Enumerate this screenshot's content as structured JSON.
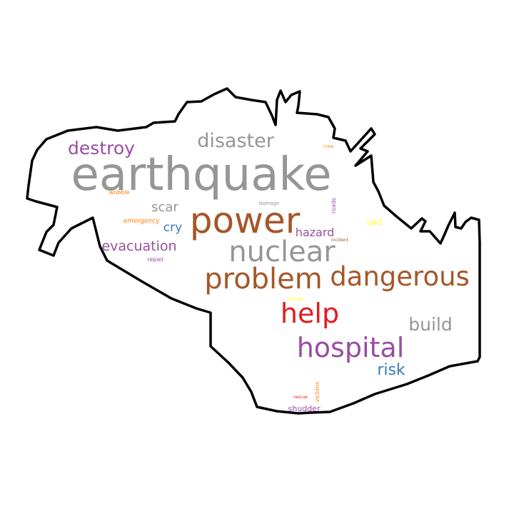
{
  "outline": {
    "stroke_color": "#000000",
    "fill_color": "#ffffff"
  },
  "words": [
    {
      "text": "earthquake",
      "color": "#969696"
    },
    {
      "text": "power",
      "color": "#a65628"
    },
    {
      "text": "problem",
      "color": "#a65628"
    },
    {
      "text": "dangerous",
      "color": "#a65628"
    },
    {
      "text": "nuclear",
      "color": "#969696"
    },
    {
      "text": "hospital",
      "color": "#984ea3"
    },
    {
      "text": "help",
      "color": "#e41a1c"
    },
    {
      "text": "disaster",
      "color": "#969696"
    },
    {
      "text": "destroy",
      "color": "#984ea3"
    },
    {
      "text": "build",
      "color": "#969696"
    },
    {
      "text": "evacuation",
      "color": "#984ea3"
    },
    {
      "text": "risk",
      "color": "#377eb8"
    },
    {
      "text": "scar",
      "color": "#969696"
    },
    {
      "text": "hazard",
      "color": "#984ea3"
    },
    {
      "text": "cry",
      "color": "#377eb8"
    },
    {
      "text": "sad",
      "color": "#ffff33"
    },
    {
      "text": "shudder",
      "color": "#984ea3"
    },
    {
      "text": "emergency",
      "color": "#ff7f00"
    },
    {
      "text": "wobble",
      "color": "#ff7f00"
    },
    {
      "text": "repair",
      "color": "#984ea3"
    },
    {
      "text": "damage",
      "color": "#969696"
    },
    {
      "text": "roads",
      "color": "#984ea3"
    },
    {
      "text": "incident",
      "color": "#a65628"
    },
    {
      "text": "victims",
      "color": "#ff7f00"
    },
    {
      "text": "rescue",
      "color": "#e41a1c"
    },
    {
      "text": "bridge",
      "color": "#ffff33"
    },
    {
      "text": "crew",
      "color": "#ff7f00"
    }
  ]
}
